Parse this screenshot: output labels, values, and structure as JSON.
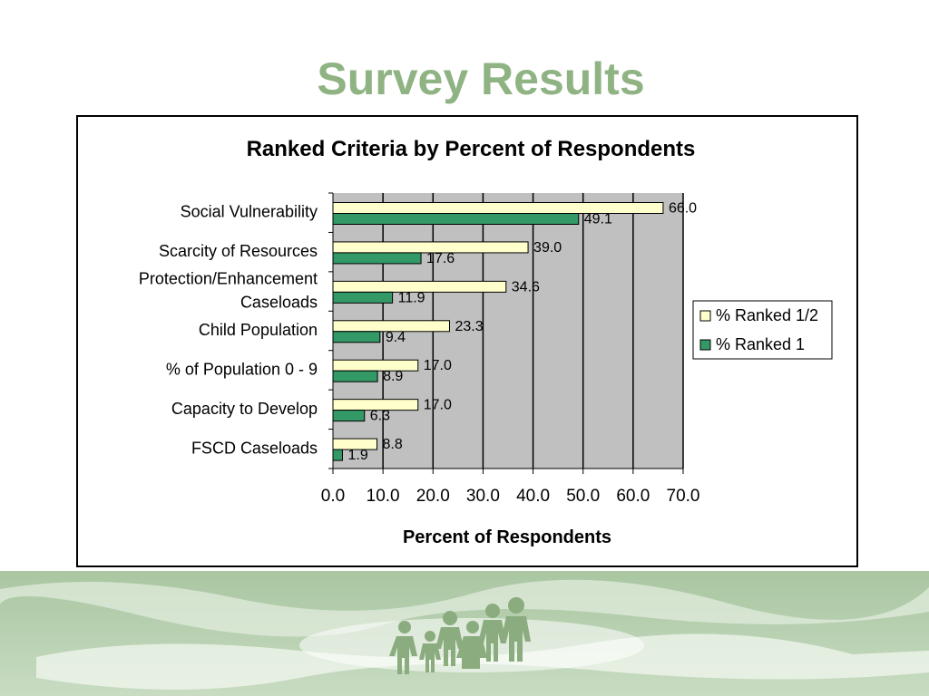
{
  "slide": {
    "title": "Survey Results"
  },
  "chart_data": {
    "type": "bar",
    "orientation": "horizontal",
    "title": "Ranked Criteria by Percent of Respondents",
    "xlabel": "Percent of Respondents",
    "ylabel": "",
    "xlim": [
      0,
      70
    ],
    "xticks": [
      "0.0",
      "10.0",
      "20.0",
      "30.0",
      "40.0",
      "50.0",
      "60.0",
      "70.0"
    ],
    "grid": true,
    "legend_position": "right",
    "categories": [
      [
        "Social Vulnerability"
      ],
      [
        "Scarcity of Resources"
      ],
      [
        "Protection/Enhancement",
        "Caseloads"
      ],
      [
        "Child Population"
      ],
      [
        "% of Population 0 - 9"
      ],
      [
        "Capacity to Develop"
      ],
      [
        "FSCD Caseloads"
      ]
    ],
    "series": [
      {
        "name": "% Ranked 1/2",
        "color": "#ffffcc",
        "values": [
          66.0,
          39.0,
          34.6,
          23.3,
          17.0,
          17.0,
          8.8
        ],
        "labels": [
          "66.0",
          "39.0",
          "34.6",
          "23.3",
          "17.0",
          "17.0",
          "8.8"
        ]
      },
      {
        "name": "% Ranked 1",
        "color": "#339966",
        "values": [
          49.1,
          17.6,
          11.9,
          9.4,
          8.9,
          6.3,
          1.9
        ],
        "labels": [
          "49.1",
          "17.6",
          "11.9",
          "9.4",
          "8.9",
          "6.3",
          "1.9"
        ]
      }
    ]
  },
  "colors": {
    "title_green": "#8fb382",
    "plot_background": "#c0c0c0",
    "footer_green": "#bcd3b5",
    "figure_green": "#8aac7e"
  },
  "decoration": {
    "footer_icon": "family-silhouette-icon"
  }
}
